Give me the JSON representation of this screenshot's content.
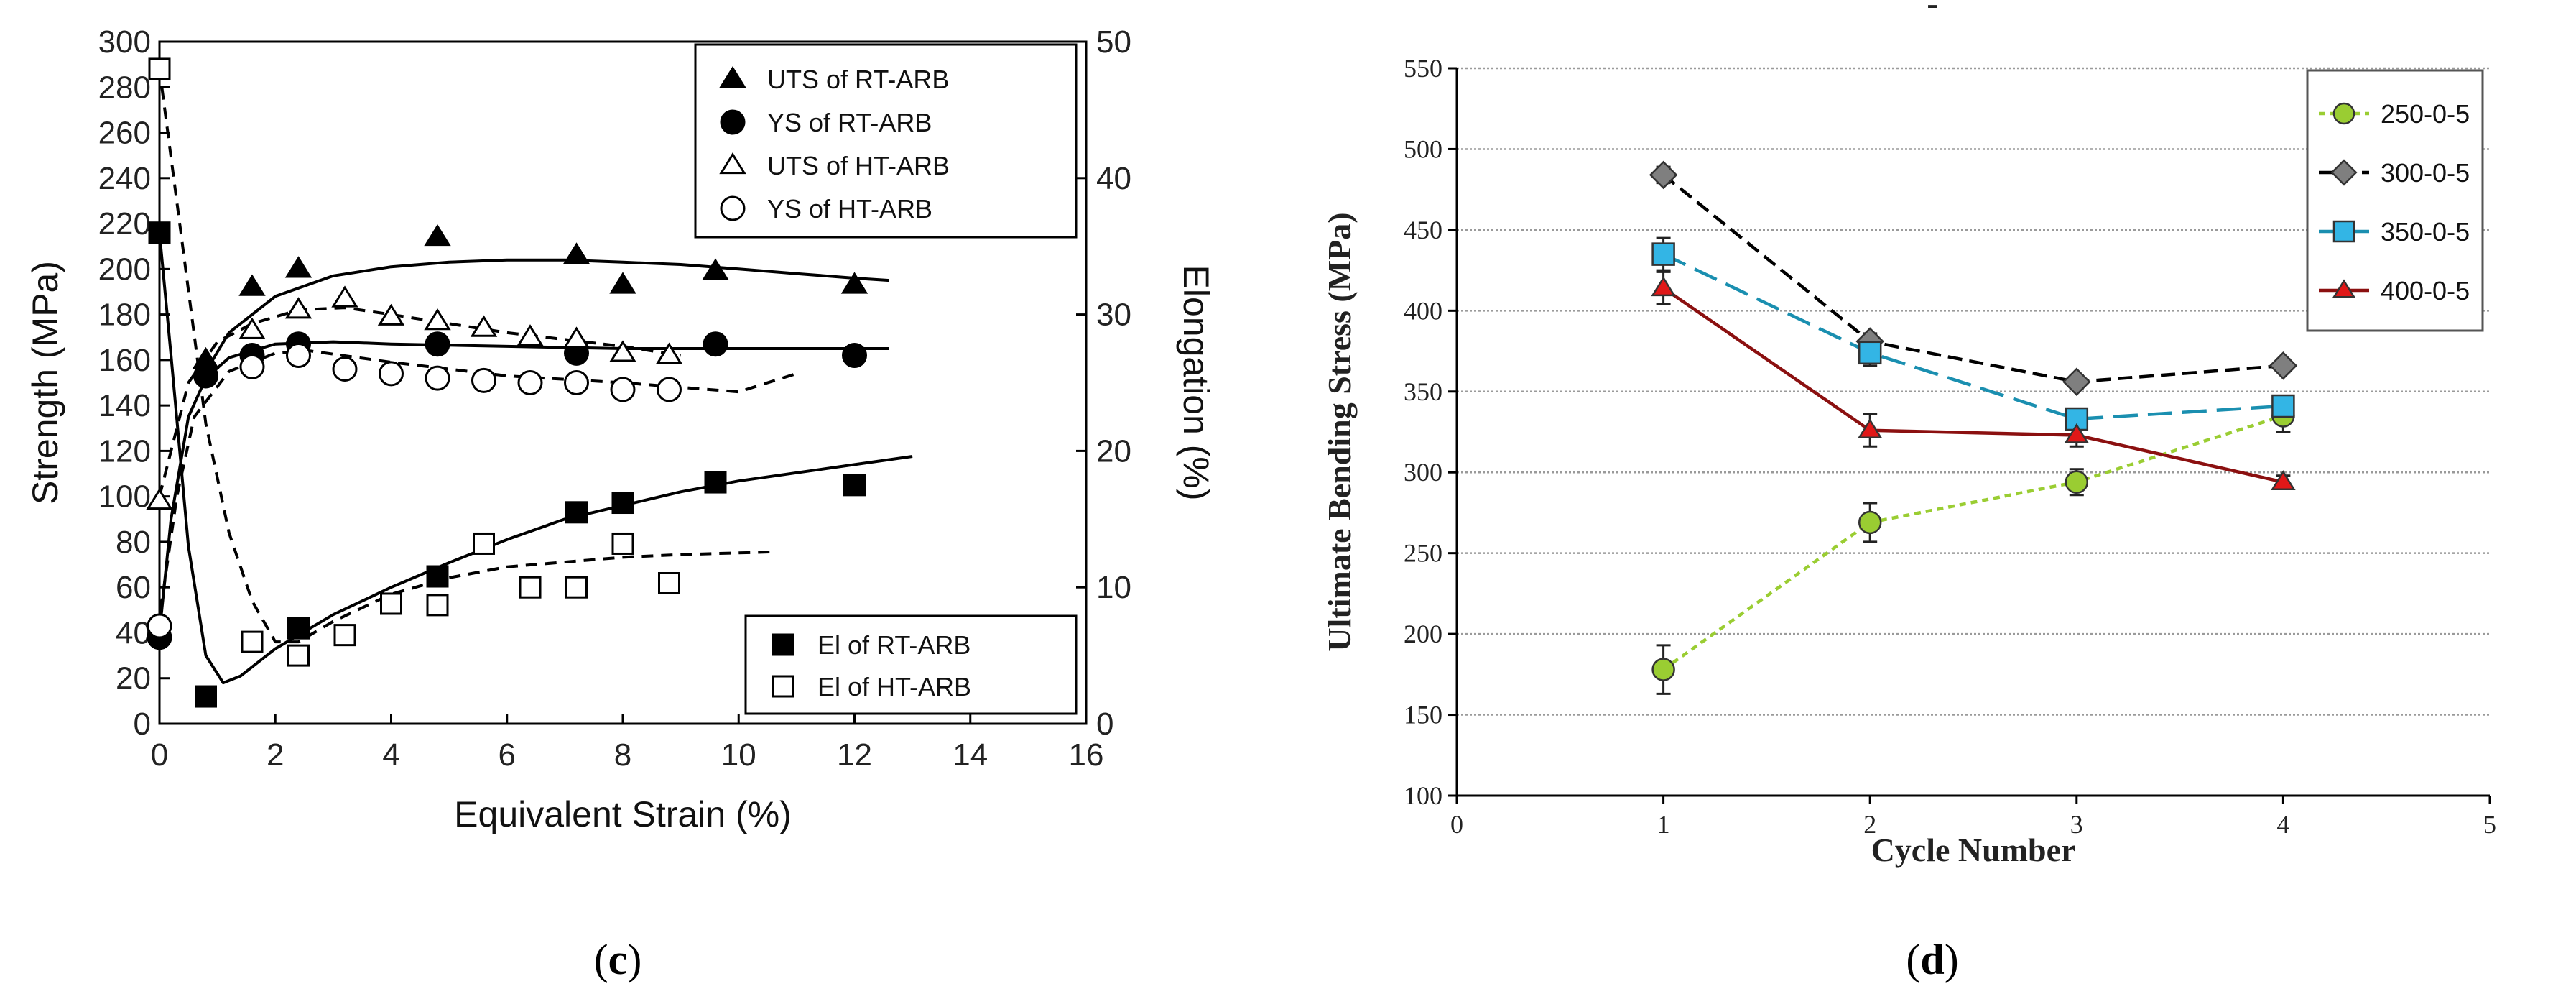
{
  "colors": {
    "background": "#ffffff",
    "axis": "#000000",
    "grid": "#9a9a9a",
    "green": "#9ACD32",
    "gray": "#7f7f7f",
    "blue": "#33B5E5",
    "red": "#E01818",
    "dark_red": "#8B1010",
    "teal_line": "#1A8FB0"
  },
  "chart_data": [
    {
      "id": "c",
      "type": "scatter",
      "caption_letter": "c",
      "caption_open": "(",
      "caption_close": ")",
      "xlabel": "Equivalent Strain (%)",
      "ylabel": "Strength (MPa)",
      "y2label": "Elongation (%)",
      "xlim": [
        0,
        16
      ],
      "ylim": [
        0,
        300
      ],
      "y2lim": [
        0,
        50
      ],
      "xticks": [
        "0",
        "2",
        "4",
        "6",
        "8",
        "10",
        "12",
        "14",
        "16"
      ],
      "yticks": [
        "0",
        "20",
        "40",
        "60",
        "80",
        "100",
        "120",
        "140",
        "160",
        "180",
        "200",
        "220",
        "240",
        "260",
        "280",
        "300"
      ],
      "y2ticks": [
        "0",
        "10",
        "20",
        "30",
        "40",
        "50"
      ],
      "grid": false,
      "legend_positions": [
        "top-right",
        "bottom-right"
      ],
      "series": [
        {
          "name": "UTS of RT-ARB",
          "marker": "triangle-filled",
          "axis": "left",
          "legend_group": 0,
          "x": [
            0.8,
            1.6,
            2.4,
            4.8,
            7.2,
            8.0,
            9.6,
            12.0
          ],
          "y": [
            160,
            192,
            200,
            214,
            206,
            193,
            199,
            193
          ],
          "fit_style": "solid",
          "fit": [
            [
              0.8,
              155
            ],
            [
              1.2,
              172
            ],
            [
              2.0,
              188
            ],
            [
              3.0,
              197
            ],
            [
              4.0,
              201
            ],
            [
              5.0,
              203
            ],
            [
              6.0,
              204
            ],
            [
              7.0,
              204
            ],
            [
              8.0,
              203
            ],
            [
              9.0,
              202
            ],
            [
              10.0,
              200
            ],
            [
              11.0,
              198
            ],
            [
              12.0,
              196
            ],
            [
              12.6,
              195
            ]
          ]
        },
        {
          "name": "YS of RT-ARB",
          "marker": "circle-filled",
          "axis": "left",
          "legend_group": 0,
          "x": [
            0,
            0.8,
            1.6,
            2.4,
            4.8,
            7.2,
            9.6,
            12.0
          ],
          "y": [
            38,
            153,
            162,
            167,
            167,
            163,
            167,
            162
          ],
          "fit_style": "solid",
          "fit": [
            [
              0.02,
              45
            ],
            [
              0.2,
              90
            ],
            [
              0.5,
              135
            ],
            [
              0.8,
              152
            ],
            [
              1.2,
              161
            ],
            [
              2.0,
              167
            ],
            [
              3.0,
              168
            ],
            [
              4.0,
              167
            ],
            [
              6.0,
              166
            ],
            [
              8.0,
              165
            ],
            [
              10.0,
              165
            ],
            [
              12.6,
              165
            ]
          ]
        },
        {
          "name": "UTS of HT-ARB",
          "marker": "triangle-open",
          "axis": "left",
          "legend_group": 0,
          "x": [
            0,
            1.6,
            2.4,
            3.2,
            4.0,
            4.8,
            5.6,
            6.4,
            7.2,
            8.0,
            8.8
          ],
          "y": [
            98,
            173,
            182,
            187,
            179,
            177,
            174,
            170,
            169,
            163,
            162
          ],
          "fit_style": "dashed",
          "fit": [
            [
              0,
              100
            ],
            [
              0.5,
              150
            ],
            [
              1.0,
              168
            ],
            [
              1.6,
              176
            ],
            [
              2.4,
              182
            ],
            [
              3.2,
              183
            ],
            [
              4.0,
              180
            ],
            [
              5.0,
              176
            ],
            [
              6.0,
              172
            ],
            [
              7.0,
              169
            ],
            [
              8.0,
              166
            ],
            [
              9.0,
              162
            ]
          ]
        },
        {
          "name": "YS of HT-ARB",
          "marker": "circle-open",
          "axis": "left",
          "legend_group": 0,
          "x": [
            0,
            1.6,
            2.4,
            3.2,
            4.0,
            4.8,
            5.6,
            6.4,
            7.2,
            8.0,
            8.8
          ],
          "y": [
            43,
            157,
            162,
            156,
            154,
            152,
            151,
            150,
            150,
            147,
            147
          ],
          "fit_style": "dashed",
          "fit": [
            [
              0.02,
              50
            ],
            [
              0.3,
              100
            ],
            [
              0.6,
              135
            ],
            [
              1.2,
              155
            ],
            [
              2.0,
              163
            ],
            [
              2.6,
              164
            ],
            [
              4.0,
              159
            ],
            [
              6.0,
              153
            ],
            [
              8.0,
              150
            ],
            [
              9.0,
              148
            ],
            [
              10.0,
              146
            ],
            [
              11.0,
              154
            ]
          ]
        },
        {
          "name": "El of RT-ARB",
          "marker": "square-filled",
          "axis": "right",
          "legend_group": 1,
          "x": [
            0,
            0.8,
            2.4,
            4.8,
            7.2,
            8.0,
            9.6,
            12.0
          ],
          "y": [
            36,
            2,
            7,
            10.8,
            15.5,
            16.2,
            17.7,
            17.5
          ],
          "fit_style": "solid",
          "fit": [
            [
              0,
              36
            ],
            [
              0.2,
              27
            ],
            [
              0.5,
              13
            ],
            [
              0.8,
              5
            ],
            [
              1.1,
              3
            ],
            [
              1.4,
              3.5
            ],
            [
              2.0,
              5.5
            ],
            [
              3.0,
              8
            ],
            [
              4.0,
              10
            ],
            [
              5.0,
              11.8
            ],
            [
              6.0,
              13.5
            ],
            [
              7.0,
              15
            ],
            [
              8.0,
              16
            ],
            [
              9.0,
              17
            ],
            [
              10.0,
              17.8
            ],
            [
              11.0,
              18.4
            ],
            [
              12.0,
              19
            ],
            [
              13.0,
              19.6
            ]
          ]
        },
        {
          "name": "El of HT-ARB",
          "marker": "square-open",
          "axis": "right",
          "legend_group": 1,
          "x": [
            0,
            1.6,
            2.4,
            3.2,
            4.0,
            4.8,
            5.6,
            6.4,
            7.2,
            8.0,
            8.8
          ],
          "y": [
            48,
            6,
            5,
            6.5,
            8.8,
            8.7,
            13.2,
            10,
            10,
            13.2,
            10.3
          ],
          "fit_style": "dashed",
          "fit": [
            [
              0,
              48
            ],
            [
              0.4,
              35
            ],
            [
              0.8,
              22
            ],
            [
              1.2,
              14
            ],
            [
              1.6,
              9
            ],
            [
              2.0,
              6
            ],
            [
              2.4,
              6
            ],
            [
              3.0,
              7.5
            ],
            [
              4.0,
              9.5
            ],
            [
              5.0,
              10.7
            ],
            [
              6.0,
              11.5
            ],
            [
              8.0,
              12.2
            ],
            [
              9.0,
              12.4
            ],
            [
              10.6,
              12.6
            ]
          ]
        }
      ]
    },
    {
      "id": "d",
      "type": "line",
      "caption_letter": "d",
      "caption_open": "(",
      "caption_close": ")",
      "title": "-",
      "xlabel": "Cycle Number",
      "ylabel": "Ultimate Bending Stress (MPa)",
      "xlim": [
        0,
        5
      ],
      "ylim": [
        100,
        550
      ],
      "xticks": [
        "0",
        "1",
        "2",
        "3",
        "4",
        "5"
      ],
      "yticks": [
        "100",
        "150",
        "200",
        "250",
        "300",
        "350",
        "400",
        "450",
        "500",
        "550"
      ],
      "grid": true,
      "legend_position": "top-right",
      "categories": [
        1,
        2,
        3,
        4
      ],
      "series": [
        {
          "name": "250-0-5",
          "marker": "circle",
          "color_key": "green",
          "line_key": "green",
          "dash": "short",
          "values": [
            178,
            269,
            294,
            335
          ],
          "error": [
            15,
            12,
            8,
            10
          ]
        },
        {
          "name": "300-0-5",
          "marker": "diamond",
          "color_key": "gray",
          "line_key": "axis",
          "dash": "medium",
          "values": [
            484,
            381,
            356,
            366
          ],
          "error": [
            5,
            5,
            4,
            4
          ]
        },
        {
          "name": "350-0-5",
          "marker": "square",
          "color_key": "blue",
          "line_key": "teal_line",
          "dash": "long",
          "values": [
            435,
            374,
            333,
            341
          ],
          "error": [
            10,
            8,
            6,
            6
          ]
        },
        {
          "name": "400-0-5",
          "marker": "triangle",
          "color_key": "red",
          "line_key": "dark_red",
          "dash": "solid",
          "values": [
            414,
            326,
            323,
            294
          ],
          "error": [
            10,
            10,
            7,
            4
          ]
        }
      ]
    }
  ]
}
